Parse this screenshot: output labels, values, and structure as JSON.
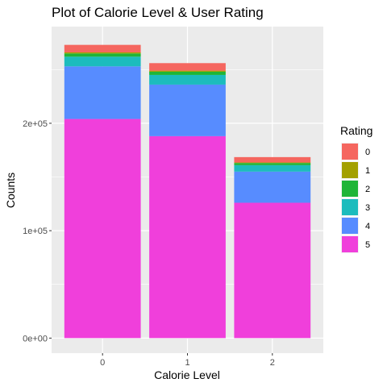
{
  "chart_data": {
    "type": "bar",
    "stacked": true,
    "title": "Plot of Calorie Level & User Rating",
    "xlabel": "Calorie Level",
    "ylabel": "Counts",
    "categories": [
      "0",
      "1",
      "2"
    ],
    "ylim": [
      -14000,
      290000
    ],
    "yticks": [
      0,
      100000,
      200000
    ],
    "ytick_labels": [
      "0e+00",
      "1e+05",
      "2e+05"
    ],
    "grid": true,
    "legend": {
      "title": "Rating",
      "position": "right"
    },
    "series": [
      {
        "name": "5",
        "color": "#f03fdb",
        "values": [
          204000,
          188000,
          126000
        ]
      },
      {
        "name": "4",
        "color": "#578cff",
        "values": [
          49000,
          48000,
          29000
        ]
      },
      {
        "name": "3",
        "color": "#1cbcbd",
        "values": [
          9000,
          9000,
          6000
        ]
      },
      {
        "name": "2",
        "color": "#1fb537",
        "values": [
          3000,
          3000,
          2000
        ]
      },
      {
        "name": "1",
        "color": "#a3a000",
        "values": [
          1000,
          1000,
          500
        ]
      },
      {
        "name": "0",
        "color": "#f5665f",
        "values": [
          7000,
          7000,
          5000
        ]
      }
    ]
  }
}
